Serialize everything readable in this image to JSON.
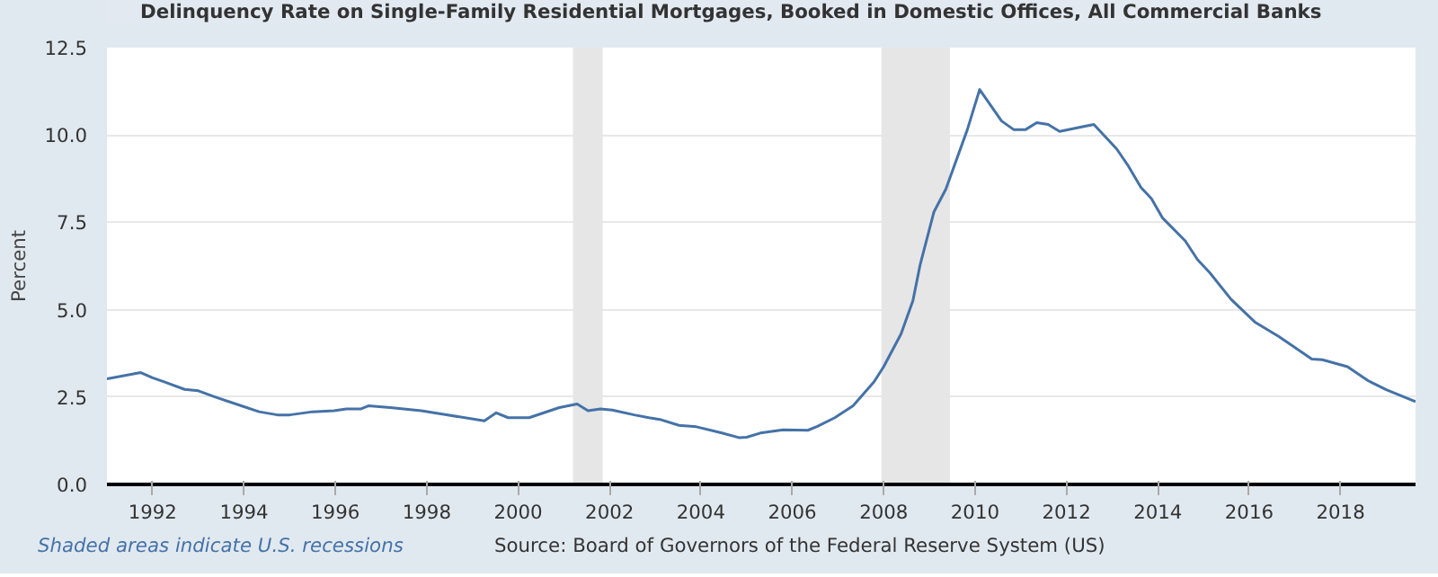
{
  "chart_data": {
    "type": "line",
    "ylabel": "Percent",
    "legend": "top",
    "grid": "y",
    "xlim": [
      1991.0,
      2019.64
    ],
    "ylim": [
      0,
      12.5
    ],
    "xticks": [
      1992,
      1994,
      1996,
      1998,
      2000,
      2002,
      2004,
      2006,
      2008,
      2010,
      2012,
      2014,
      2016,
      2018
    ],
    "yticks": [
      {
        "value": 0,
        "label": "0.0"
      },
      {
        "value": 2.5,
        "label": "2.5"
      },
      {
        "value": 5,
        "label": "5.0"
      },
      {
        "value": 7.5,
        "label": "7.5"
      },
      {
        "value": 10,
        "label": "10.0"
      },
      {
        "value": 12.5,
        "label": "12.5"
      }
    ],
    "bands": [
      {
        "axis": "x",
        "from": 2001.2,
        "to": 2001.85,
        "color": "#e6e6e6"
      },
      {
        "axis": "x",
        "from": 2007.95,
        "to": 2009.45,
        "color": "#e6e6e6"
      }
    ],
    "series": [
      {
        "name": "Delinquency Rate on Single-Family Residential Mortgages, Booked in Domestic Offices, All Commercial Banks",
        "color": "#4572a7",
        "x": [
          1991.0,
          1991.74,
          1992.0,
          1992.24,
          1992.7,
          1993.0,
          1993.35,
          1993.94,
          1994.33,
          1994.73,
          1995.0,
          1995.5,
          1995.97,
          1996.24,
          1996.55,
          1996.72,
          1997.2,
          1997.88,
          1998.4,
          1999.26,
          1999.52,
          1999.78,
          2000.24,
          2000.9,
          2001.29,
          2001.53,
          2001.8,
          2002.06,
          2002.54,
          2002.86,
          2003.1,
          2003.52,
          2003.9,
          2004.44,
          2004.83,
          2005.0,
          2005.3,
          2005.8,
          2006.34,
          2006.55,
          2006.93,
          2007.33,
          2007.79,
          2008.0,
          2008.38,
          2008.64,
          2008.8,
          2009.1,
          2009.36,
          2009.83,
          2010.1,
          2010.58,
          2010.85,
          2011.1,
          2011.35,
          2011.6,
          2011.85,
          2012.4,
          2012.6,
          2013.1,
          2013.36,
          2013.63,
          2013.86,
          2014.1,
          2014.6,
          2014.87,
          2015.13,
          2015.6,
          2016.12,
          2016.65,
          2017.37,
          2017.6,
          2018.15,
          2018.6,
          2019.0,
          2019.64
        ],
        "values": [
          3.02,
          3.2,
          3.05,
          2.94,
          2.72,
          2.68,
          2.51,
          2.25,
          2.08,
          1.99,
          1.99,
          2.08,
          2.11,
          2.16,
          2.16,
          2.25,
          2.2,
          2.11,
          2.0,
          1.82,
          2.05,
          1.91,
          1.91,
          2.2,
          2.3,
          2.11,
          2.16,
          2.13,
          1.99,
          1.91,
          1.86,
          1.69,
          1.65,
          1.48,
          1.34,
          1.35,
          1.47,
          1.56,
          1.55,
          1.66,
          1.91,
          2.25,
          2.94,
          3.37,
          4.31,
          5.26,
          6.3,
          7.8,
          8.45,
          10.15,
          11.3,
          10.4,
          10.15,
          10.15,
          10.35,
          10.3,
          10.1,
          10.25,
          10.3,
          9.6,
          9.1,
          8.5,
          8.18,
          7.63,
          6.97,
          6.43,
          6.07,
          5.3,
          4.65,
          4.23,
          3.59,
          3.57,
          3.37,
          2.97,
          2.71,
          2.37
        ]
      }
    ],
    "annotations": [
      "Shaded areas indicate U.S. recessions",
      "Source: Board of Governors of the Federal Reserve System (US)"
    ]
  }
}
